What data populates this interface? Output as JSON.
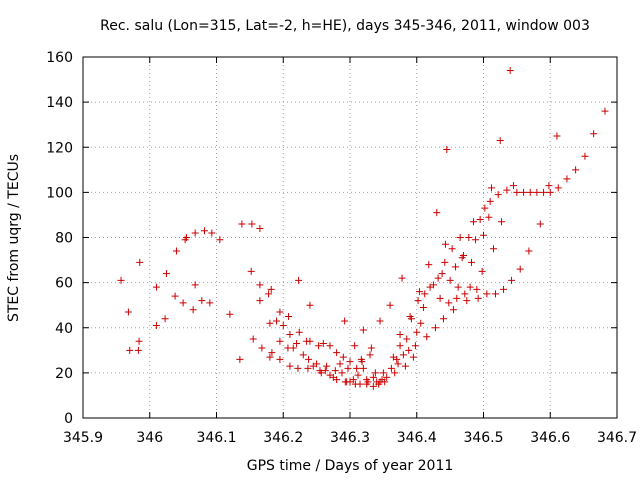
{
  "chart_data": {
    "type": "scatter",
    "title": "Rec. salu (Lon=315, Lat=-2, h=HE), days 345-346, 2011, window 003",
    "xlabel": "GPS time / Days of year 2011",
    "ylabel": "STEC from uqrg / TECUs",
    "xlim": [
      345.9,
      346.7
    ],
    "ylim": [
      0,
      160
    ],
    "x_ticks": [
      "345.9",
      "346",
      "346.1",
      "346.2",
      "346.3",
      "346.4",
      "346.5",
      "346.6",
      "346.7"
    ],
    "y_ticks": [
      "0",
      "20",
      "40",
      "60",
      "80",
      "100",
      "120",
      "140",
      "160"
    ],
    "grid": true,
    "marker": "+",
    "color": "#cc0000",
    "points": [
      [
        345.957,
        61
      ],
      [
        345.968,
        47
      ],
      [
        345.97,
        30
      ],
      [
        345.983,
        30
      ],
      [
        345.984,
        34
      ],
      [
        345.985,
        69
      ],
      [
        346.01,
        41
      ],
      [
        346.01,
        58
      ],
      [
        346.023,
        44
      ],
      [
        346.025,
        64
      ],
      [
        346.038,
        54
      ],
      [
        346.04,
        74
      ],
      [
        346.05,
        51
      ],
      [
        346.053,
        79
      ],
      [
        346.055,
        80
      ],
      [
        346.065,
        48
      ],
      [
        346.068,
        59
      ],
      [
        346.068,
        82
      ],
      [
        346.078,
        52
      ],
      [
        346.082,
        83
      ],
      [
        346.09,
        51
      ],
      [
        346.093,
        82
      ],
      [
        346.105,
        79
      ],
      [
        346.12,
        46
      ],
      [
        346.135,
        26
      ],
      [
        346.138,
        86
      ],
      [
        346.152,
        65
      ],
      [
        346.153,
        86
      ],
      [
        346.155,
        35
      ],
      [
        346.165,
        52
      ],
      [
        346.165,
        59
      ],
      [
        346.165,
        84
      ],
      [
        346.168,
        31
      ],
      [
        346.178,
        55
      ],
      [
        346.18,
        27
      ],
      [
        346.18,
        42
      ],
      [
        346.182,
        57
      ],
      [
        346.183,
        29
      ],
      [
        346.19,
        43
      ],
      [
        346.195,
        26
      ],
      [
        346.195,
        34
      ],
      [
        346.195,
        47
      ],
      [
        346.2,
        41
      ],
      [
        346.207,
        31
      ],
      [
        346.208,
        45
      ],
      [
        346.21,
        23
      ],
      [
        346.21,
        37
      ],
      [
        346.215,
        31
      ],
      [
        346.22,
        33
      ],
      [
        346.222,
        22
      ],
      [
        346.223,
        61
      ],
      [
        346.224,
        38
      ],
      [
        346.23,
        28
      ],
      [
        346.235,
        34
      ],
      [
        346.237,
        22
      ],
      [
        346.238,
        26
      ],
      [
        346.24,
        34
      ],
      [
        346.24,
        50
      ],
      [
        346.245,
        23
      ],
      [
        346.25,
        24
      ],
      [
        346.253,
        32
      ],
      [
        346.255,
        21
      ],
      [
        346.257,
        20
      ],
      [
        346.26,
        33
      ],
      [
        346.263,
        21
      ],
      [
        346.265,
        23
      ],
      [
        346.27,
        32
      ],
      [
        346.27,
        19
      ],
      [
        346.275,
        18
      ],
      [
        346.278,
        21
      ],
      [
        346.28,
        17
      ],
      [
        346.28,
        29
      ],
      [
        346.285,
        24
      ],
      [
        346.288,
        20
      ],
      [
        346.29,
        27
      ],
      [
        346.292,
        43
      ],
      [
        346.293,
        16
      ],
      [
        346.295,
        16
      ],
      [
        346.297,
        22
      ],
      [
        346.3,
        25
      ],
      [
        346.3,
        16
      ],
      [
        346.305,
        17
      ],
      [
        346.307,
        32
      ],
      [
        346.308,
        15
      ],
      [
        346.31,
        22
      ],
      [
        346.312,
        19
      ],
      [
        346.315,
        15
      ],
      [
        346.317,
        26
      ],
      [
        346.318,
        25
      ],
      [
        346.32,
        22
      ],
      [
        346.32,
        39
      ],
      [
        346.325,
        17
      ],
      [
        346.325,
        15
      ],
      [
        346.327,
        16
      ],
      [
        346.33,
        28
      ],
      [
        346.332,
        31
      ],
      [
        346.335,
        14
      ],
      [
        346.335,
        18
      ],
      [
        346.338,
        20
      ],
      [
        346.34,
        16
      ],
      [
        346.343,
        15
      ],
      [
        346.345,
        16
      ],
      [
        346.345,
        43
      ],
      [
        346.348,
        17
      ],
      [
        346.35,
        20
      ],
      [
        346.352,
        16
      ],
      [
        346.355,
        18
      ],
      [
        346.36,
        50
      ],
      [
        346.362,
        22
      ],
      [
        346.365,
        27
      ],
      [
        346.367,
        20
      ],
      [
        346.37,
        26
      ],
      [
        346.372,
        24
      ],
      [
        346.375,
        32
      ],
      [
        346.375,
        37
      ],
      [
        346.378,
        62
      ],
      [
        346.38,
        28
      ],
      [
        346.383,
        23
      ],
      [
        346.385,
        35
      ],
      [
        346.388,
        30
      ],
      [
        346.39,
        45
      ],
      [
        346.392,
        44
      ],
      [
        346.395,
        27
      ],
      [
        346.398,
        32
      ],
      [
        346.4,
        38
      ],
      [
        346.402,
        52
      ],
      [
        346.404,
        56
      ],
      [
        346.406,
        42
      ],
      [
        346.41,
        49
      ],
      [
        346.412,
        55
      ],
      [
        346.415,
        36
      ],
      [
        346.418,
        68
      ],
      [
        346.42,
        58
      ],
      [
        346.425,
        59
      ],
      [
        346.428,
        40
      ],
      [
        346.43,
        91
      ],
      [
        346.432,
        62
      ],
      [
        346.435,
        53
      ],
      [
        346.438,
        64
      ],
      [
        346.44,
        44
      ],
      [
        346.442,
        69
      ],
      [
        346.443,
        77
      ],
      [
        346.445,
        119
      ],
      [
        346.448,
        51
      ],
      [
        346.45,
        61
      ],
      [
        346.453,
        75
      ],
      [
        346.455,
        48
      ],
      [
        346.458,
        67
      ],
      [
        346.46,
        53
      ],
      [
        346.462,
        58
      ],
      [
        346.465,
        80
      ],
      [
        346.468,
        71
      ],
      [
        346.47,
        72
      ],
      [
        346.472,
        55
      ],
      [
        346.475,
        52
      ],
      [
        346.478,
        80
      ],
      [
        346.48,
        58
      ],
      [
        346.482,
        69
      ],
      [
        346.485,
        87
      ],
      [
        346.488,
        79
      ],
      [
        346.49,
        57
      ],
      [
        346.492,
        53
      ],
      [
        346.495,
        88
      ],
      [
        346.498,
        65
      ],
      [
        346.5,
        81
      ],
      [
        346.502,
        93
      ],
      [
        346.505,
        55
      ],
      [
        346.508,
        89
      ],
      [
        346.51,
        96
      ],
      [
        346.512,
        102
      ],
      [
        346.515,
        75
      ],
      [
        346.518,
        55
      ],
      [
        346.522,
        99
      ],
      [
        346.525,
        123
      ],
      [
        346.527,
        87
      ],
      [
        346.53,
        57
      ],
      [
        346.535,
        101
      ],
      [
        346.54,
        154
      ],
      [
        346.542,
        61
      ],
      [
        346.545,
        103
      ],
      [
        346.55,
        100
      ],
      [
        346.555,
        66
      ],
      [
        346.56,
        100
      ],
      [
        346.568,
        74
      ],
      [
        346.57,
        100
      ],
      [
        346.58,
        100
      ],
      [
        346.585,
        86
      ],
      [
        346.59,
        100
      ],
      [
        346.598,
        103
      ],
      [
        346.6,
        100
      ],
      [
        346.61,
        125
      ],
      [
        346.612,
        102
      ],
      [
        346.625,
        106
      ],
      [
        346.638,
        110
      ],
      [
        346.652,
        116
      ],
      [
        346.665,
        126
      ],
      [
        346.682,
        136
      ]
    ]
  }
}
